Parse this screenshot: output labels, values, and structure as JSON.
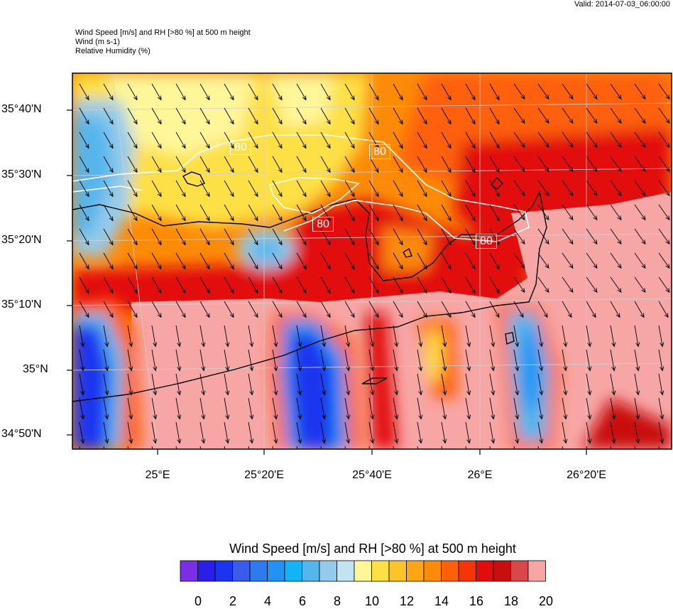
{
  "header": {
    "valid_time": "Valid: 2014-07-03_06:00:00",
    "title_line1": "Wind Speed [m/s] and RH [>80 %] at 500 m height",
    "title_line2": "Wind   (m s-1)",
    "title_line3": "Relative Humidity   (%)"
  },
  "map": {
    "lat_labels": [
      "35°40'N",
      "35°30'N",
      "35°20'N",
      "35°10'N",
      "35°N",
      "34°50'N"
    ],
    "lon_labels": [
      "25°E",
      "25°20'E",
      "25°40'E",
      "26°E",
      "26°20'E"
    ],
    "rh_contour_labels": [
      "80",
      "80",
      "80",
      "80"
    ],
    "land_color": "#f7a6a6",
    "coast_color": "#000000",
    "rh_contour_color": "#ffffff"
  },
  "colorbar": {
    "title": "Wind Speed [m/s] and RH [>80 %] at 500 m height",
    "tick_labels": [
      "0",
      "2",
      "4",
      "6",
      "8",
      "10",
      "12",
      "14",
      "16",
      "18",
      "20"
    ],
    "colors": [
      "#7b2ee6",
      "#2a1fe8",
      "#1a35ef",
      "#3a5cea",
      "#2e7bf0",
      "#2293f5",
      "#12b4f5",
      "#56b5ec",
      "#94cbea",
      "#c1e3f2",
      "#fff69a",
      "#fde045",
      "#fec329",
      "#fea515",
      "#fd8b07",
      "#fe6009",
      "#f63409",
      "#e20c0c",
      "#c90e10",
      "#d8474a",
      "#f7a6a6"
    ]
  }
}
